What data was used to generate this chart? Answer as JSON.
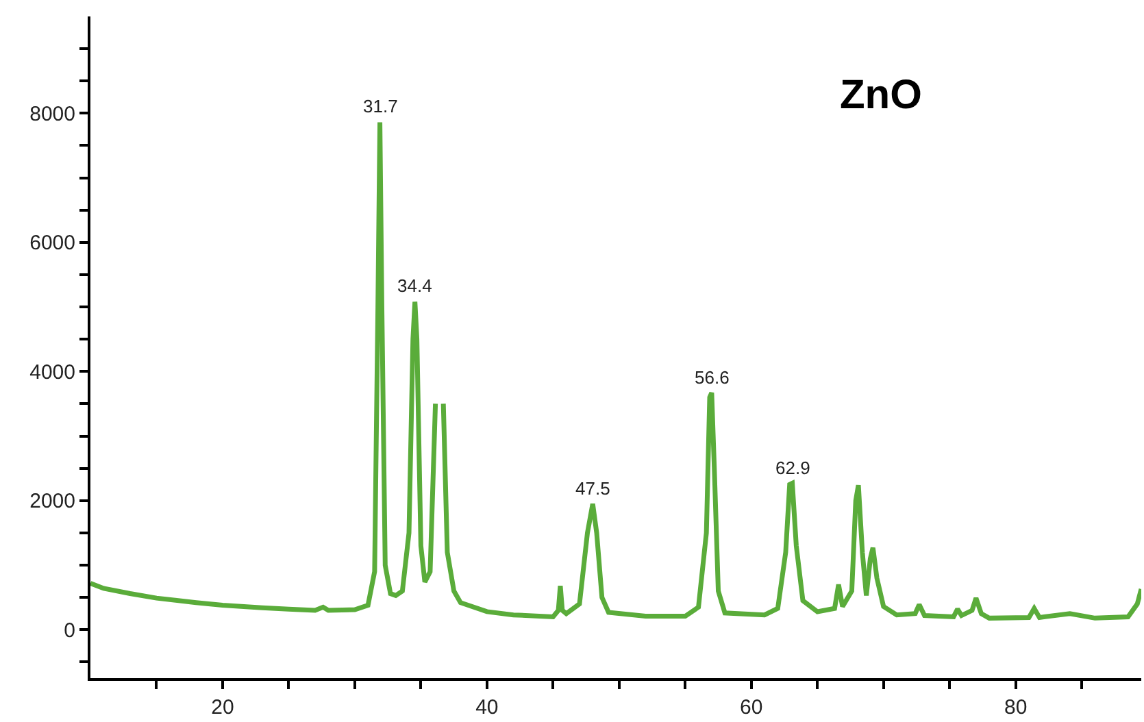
{
  "chart_data": {
    "type": "line",
    "title": "ZnO",
    "x": [
      10,
      11,
      13,
      15,
      18,
      20,
      23,
      25,
      27,
      27.6,
      28,
      30,
      31,
      31.5,
      31.75,
      31.9,
      32.05,
      32.3,
      32.7,
      33.1,
      33.6,
      34.1,
      34.4,
      34.55,
      34.7,
      35,
      35.3,
      35.7,
      36.1,
      36.3,
      36.5,
      36.7,
      37,
      37.5,
      38,
      40,
      42,
      45,
      45.4,
      45.55,
      45.7,
      46,
      47,
      47.6,
      48.0,
      48.3,
      48.7,
      49.2,
      52,
      55,
      56,
      56.6,
      56.85,
      57.0,
      57.2,
      57.5,
      58,
      61,
      62,
      62.6,
      62.9,
      63.1,
      63.4,
      63.9,
      65,
      66.3,
      66.6,
      66.9,
      67.6,
      67.9,
      68.1,
      68.4,
      68.7,
      69.0,
      69.2,
      69.5,
      70,
      71,
      72.4,
      72.7,
      73.1,
      75.3,
      75.6,
      75.9,
      76.7,
      77.0,
      77.4,
      78,
      81,
      81.4,
      81.8,
      84.1,
      86,
      88.5,
      89.2,
      89.5
    ],
    "series": [
      {
        "color": "#5aac3a",
        "values": [
          720,
          640,
          560,
          490,
          420,
          380,
          340,
          320,
          300,
          350,
          300,
          310,
          380,
          900,
          5000,
          7860,
          5000,
          1000,
          560,
          530,
          600,
          1500,
          4500,
          5080,
          4500,
          1300,
          740,
          900,
          3500,
          null,
          null,
          3500,
          1200,
          600,
          420,
          280,
          230,
          200,
          300,
          680,
          300,
          250,
          400,
          1500,
          1950,
          1500,
          500,
          270,
          210,
          210,
          350,
          1500,
          3600,
          3670,
          2500,
          600,
          260,
          230,
          330,
          1200,
          2250,
          2270,
          1300,
          450,
          280,
          330,
          700,
          360,
          600,
          2000,
          2240,
          1200,
          530,
          1100,
          1270,
          800,
          360,
          230,
          250,
          390,
          220,
          200,
          320,
          220,
          300,
          490,
          250,
          180,
          190,
          330,
          190,
          250,
          180,
          200,
          400,
          630
        ]
      }
    ],
    "annotations": [
      {
        "text": "31.7",
        "x": 31.9,
        "y": 7860
      },
      {
        "text": "34.4",
        "x": 34.55,
        "y": 5080
      },
      {
        "text": "47.5",
        "x": 48.0,
        "y": 1950
      },
      {
        "text": "56.6",
        "x": 57.0,
        "y": 3670
      },
      {
        "text": "62.9",
        "x": 63.1,
        "y": 2270
      }
    ],
    "xlim": [
      10,
      89.5
    ],
    "xticks": [
      {
        "value": 15,
        "label": null
      },
      20,
      {
        "value": 25,
        "label": null
      },
      {
        "value": 30,
        "label": null
      },
      {
        "value": 35,
        "label": null
      },
      40,
      {
        "value": 45,
        "label": null
      },
      {
        "value": 50,
        "label": null
      },
      {
        "value": 55,
        "label": null
      },
      60,
      {
        "value": 65,
        "label": null
      },
      {
        "value": 70,
        "label": null
      },
      {
        "value": 75,
        "label": null
      },
      80,
      {
        "value": 85,
        "label": null
      }
    ],
    "ylim": [
      -750,
      9500
    ],
    "yticks": [
      {
        "value": -500,
        "label": null
      },
      0,
      {
        "value": 500,
        "label": null
      },
      {
        "value": 1000,
        "label": null
      },
      {
        "value": 1500,
        "label": null
      },
      2000,
      {
        "value": 2500,
        "label": null
      },
      {
        "value": 3000,
        "label": null
      },
      {
        "value": 3500,
        "label": null
      },
      4000,
      {
        "value": 4500,
        "label": null
      },
      {
        "value": 5000,
        "label": null
      },
      {
        "value": 5500,
        "label": null
      },
      6000,
      {
        "value": 6500,
        "label": null
      },
      {
        "value": 7000,
        "label": null
      },
      {
        "value": 7500,
        "label": null
      },
      8000,
      {
        "value": 8500,
        "label": null
      },
      {
        "value": 9000,
        "label": null
      }
    ],
    "marker": "none",
    "line_style": "solid"
  }
}
